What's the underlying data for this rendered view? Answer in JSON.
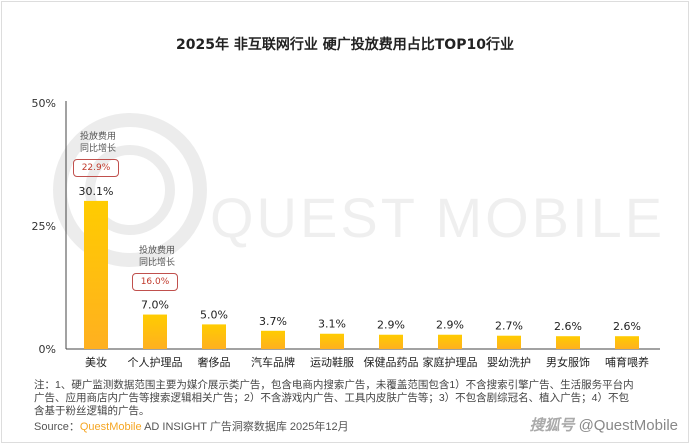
{
  "chart_data": {
    "type": "bar",
    "title": "2025年 非互联网行业 硬广投放费用占比TOP10行业",
    "categories": [
      "美妆",
      "个人护理品",
      "奢侈品",
      "汽车品牌",
      "运动鞋服",
      "保健品药品",
      "家庭护理品",
      "婴幼洗护",
      "男女服饰",
      "哺育喂养"
    ],
    "values": [
      30.1,
      7.0,
      5.0,
      3.7,
      3.1,
      2.9,
      2.9,
      2.7,
      2.6,
      2.6
    ],
    "value_labels": [
      "30.1%",
      "7.0%",
      "5.0%",
      "3.7%",
      "3.1%",
      "2.9%",
      "2.9%",
      "2.7%",
      "2.6%",
      "2.6%"
    ],
    "ylim": [
      0,
      50
    ],
    "yticks": [
      {
        "v": 0,
        "label": "0%"
      },
      {
        "v": 25,
        "label": "25%"
      },
      {
        "v": 50,
        "label": "50%"
      }
    ],
    "grid": false,
    "bar_color": "#ffc107",
    "annotations": [
      {
        "category_index": 0,
        "label_line1": "投放费用",
        "label_line2": "同比增长",
        "value": "22.9%"
      },
      {
        "category_index": 1,
        "label_line1": "投放费用",
        "label_line2": "同比增长",
        "value": "16.0%"
      }
    ]
  },
  "watermark": "QUEST MOBILE",
  "notes": "注：1、硬广监测数据范围主要为媒介展示类广告，包含电商内搜索广告，未覆盖范围包含1）不含搜索引擎广告、生活服务平台内广告、应用商店内广告等搜索逻辑相关广告；2）不含游戏内广告、工具内皮肤广告等；3）不包含剧综冠名、植入广告；4）不包含基于粉丝逻辑的广告。",
  "source": {
    "prefix": "Source：",
    "brand": "QuestMobile",
    "rest": " AD INSIGHT 广告洞察数据库 2025年12月"
  },
  "handle": {
    "platform": "搜狐号",
    "account": "@QuestMobile"
  }
}
